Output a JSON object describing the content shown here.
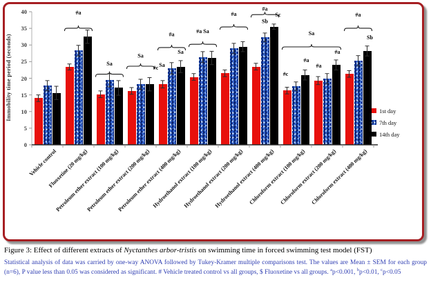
{
  "frame": {
    "border_color": "#a61e22",
    "shadow_color": "#9b9b9b"
  },
  "chart_data": {
    "type": "bar",
    "title": "",
    "xlabel": "",
    "ylabel": "Immobility time period (seconds)",
    "ylim": [
      0,
      40
    ],
    "ytick_step": 5,
    "grid": false,
    "legend_position": "right",
    "categories": [
      "Vehicle control",
      "Fluoxetine (20 mg/kg)",
      "Petroleum ether extract (100 mg/kg)",
      "Petroleum ether extract (200 mg/kg)",
      "Petroleum ether extract (400 mg/kg)",
      "Hydroethanol extract (100 mg/kg)",
      "Hydroethanol extract (200 mg/kg)",
      "Hydroethanol extract (400 mg/kg)",
      "Chloroform extract (100 mg/kg)",
      "Chloroform extract (200 mg/kg)",
      "Chloroform extract (400 mg/kg)"
    ],
    "series": [
      {
        "name": "1st day",
        "color": "#e8100c",
        "pattern": "solid",
        "values": [
          14.0,
          23.4,
          15.2,
          16.2,
          18.2,
          20.4,
          21.5,
          23.5,
          16.3,
          19.3,
          21.3
        ],
        "errors": [
          1.0,
          0.9,
          1.0,
          1.0,
          1.1,
          1.0,
          1.0,
          1.0,
          1.0,
          1.2,
          1.0
        ]
      },
      {
        "name": "7th day",
        "color": "#3a6bd6",
        "pattern": "speckled",
        "values": [
          17.8,
          28.3,
          19.4,
          18.2,
          23.0,
          26.4,
          29.0,
          32.3,
          17.6,
          19.9,
          25.3
        ],
        "errors": [
          1.5,
          1.6,
          2.0,
          1.5,
          1.7,
          1.6,
          1.5,
          1.3,
          1.3,
          1.5,
          1.5
        ]
      },
      {
        "name": "14th day",
        "color": "#000000",
        "pattern": "solid",
        "values": [
          15.6,
          32.5,
          17.1,
          18.2,
          23.5,
          26.1,
          29.5,
          35.5,
          21.0,
          24.0,
          28.2
        ],
        "errors": [
          2.0,
          2.0,
          2.2,
          2.0,
          1.8,
          2.0,
          1.5,
          0.8,
          1.5,
          1.5,
          1.5
        ]
      }
    ],
    "annotations": {
      "braces": [
        {
          "from": 1,
          "to": 1,
          "v": 34.2,
          "label": "#a",
          "label_v": 39.2
        },
        {
          "from": 2,
          "to": 2,
          "v": 20.4,
          "label": "Sa",
          "label_v": 23.8
        },
        {
          "from": 3,
          "to": 3,
          "v": 22.8,
          "label": "Sa",
          "label_v": 26.2
        },
        {
          "from": 4,
          "to": 4,
          "v": 28.4,
          "label": "#a",
          "label_v": 32.6
        },
        {
          "from": 5,
          "to": 5,
          "v": 29.4,
          "label": "#a Sa",
          "label_v": 33.6
        },
        {
          "from": 6,
          "to": 6,
          "v": 34.6,
          "label": "#a",
          "label_v": 38.8
        },
        {
          "from": 7,
          "to": 7,
          "v": 38.3,
          "label": "#a",
          "label_v": 40.3
        },
        {
          "from": 8,
          "to": 9,
          "v": 28.6,
          "label": "Sa",
          "label_v": 33.0
        },
        {
          "from": 10,
          "to": 10,
          "v": 34.2,
          "label": "#a",
          "label_v": 38.6
        }
      ],
      "point_labels": [
        {
          "g": 3,
          "s": 2,
          "v": 22.6,
          "dx": 9,
          "label": "#c"
        },
        {
          "g": 4,
          "s": 0,
          "v": 23.4,
          "dx": -1,
          "label": "Sa"
        },
        {
          "g": 4,
          "s": 2,
          "v": 27.4,
          "dx": 0,
          "label": "Sa"
        },
        {
          "g": 7,
          "s": 1,
          "v": 36.6,
          "dx": 0,
          "label": "Sb"
        },
        {
          "g": 7,
          "s": 2,
          "v": 38.6,
          "dx": 6,
          "label": "Sc"
        },
        {
          "g": 8,
          "s": 0,
          "v": 20.7,
          "dx": -2,
          "label": "#c"
        },
        {
          "g": 8,
          "s": 2,
          "v": 24.9,
          "dx": 2,
          "label": "#a"
        },
        {
          "g": 9,
          "s": 0,
          "v": 23.2,
          "dx": 1,
          "label": "#a"
        },
        {
          "g": 9,
          "s": 2,
          "v": 27.4,
          "dx": 2,
          "label": "#a"
        },
        {
          "g": 10,
          "s": 2,
          "v": 31.7,
          "dx": 4,
          "label": "Sb"
        }
      ]
    }
  },
  "caption": {
    "title_prefix": "Figure 3: Effect of different extracts of ",
    "title_italic": "Nyctanthes arbor-tristis",
    "title_suffix": " on swimming time in forced swimming test model (FST)",
    "stats_main": "Statistical analysis of data was carried by one-way ANOVA followed by Tukey-Kramer multiple comparisons test. The values are Mean ± SEM for each group (n=6), P value less than 0.05 was considered as significant. # Vehicle treated control vs all groups, $ Fluoxetine vs all groups. ",
    "sup_a": "a",
    "seg_a": "p<0.001, ",
    "sup_b": "b",
    "seg_b": "p<0.01, ",
    "sup_c": "c",
    "seg_c": "p<0.05"
  }
}
